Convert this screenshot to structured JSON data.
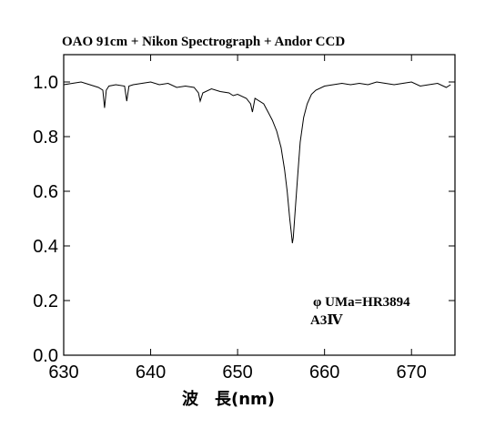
{
  "chart_data": {
    "type": "line",
    "title": "OAO 91cm + Nikon Spectrograph + Andor CCD",
    "xlabel": "波　長(nm)",
    "ylabel": "",
    "xlim": [
      630,
      675
    ],
    "ylim": [
      0.0,
      1.1
    ],
    "xticks": [
      630,
      640,
      650,
      660,
      670
    ],
    "xtick_labels": [
      "630",
      "640",
      "650",
      "660",
      "670"
    ],
    "yticks": [
      0.0,
      0.2,
      0.4,
      0.6,
      0.8,
      1.0
    ],
    "ytick_labels": [
      "0.0",
      "0.2",
      "0.4",
      "0.6",
      "0.8",
      "1.0"
    ],
    "grid": false,
    "annotations": [
      "φ UMa=HR3894",
      "A3Ⅳ"
    ],
    "series": [
      {
        "x": [
          630.0,
          631.0,
          632.0,
          633.0,
          634.0,
          634.5,
          634.7,
          634.9,
          635.2,
          636.0,
          637.0,
          637.25,
          637.5,
          638.0,
          639.0,
          640.0,
          641.0,
          642.0,
          643.0,
          644.0,
          645.0,
          645.5,
          645.7,
          646.0,
          647.0,
          648.0,
          649.0,
          649.5,
          650.0,
          651.0,
          651.5,
          651.7,
          652.0,
          653.0,
          653.5,
          654.0,
          654.5,
          655.0,
          655.4,
          655.7,
          656.0,
          656.2,
          656.3,
          656.4,
          656.6,
          656.9,
          657.2,
          657.6,
          658.0,
          658.5,
          659.0,
          660.0,
          661.0,
          662.0,
          663.0,
          664.0,
          665.0,
          666.0,
          667.0,
          668.0,
          669.0,
          670.0,
          671.0,
          672.0,
          673.0,
          674.0,
          674.5
        ],
        "y": [
          0.99,
          0.995,
          1.0,
          0.99,
          0.98,
          0.97,
          0.905,
          0.97,
          0.985,
          0.99,
          0.985,
          0.93,
          0.985,
          0.99,
          0.995,
          1.0,
          0.99,
          0.995,
          0.98,
          0.985,
          0.98,
          0.96,
          0.93,
          0.96,
          0.975,
          0.965,
          0.96,
          0.95,
          0.955,
          0.94,
          0.92,
          0.89,
          0.94,
          0.92,
          0.89,
          0.86,
          0.82,
          0.76,
          0.68,
          0.6,
          0.5,
          0.44,
          0.41,
          0.43,
          0.52,
          0.65,
          0.78,
          0.87,
          0.92,
          0.955,
          0.97,
          0.985,
          0.99,
          0.995,
          0.99,
          0.995,
          0.99,
          1.0,
          0.995,
          0.99,
          0.995,
          1.0,
          0.985,
          0.99,
          0.995,
          0.98,
          0.99
        ]
      }
    ]
  }
}
